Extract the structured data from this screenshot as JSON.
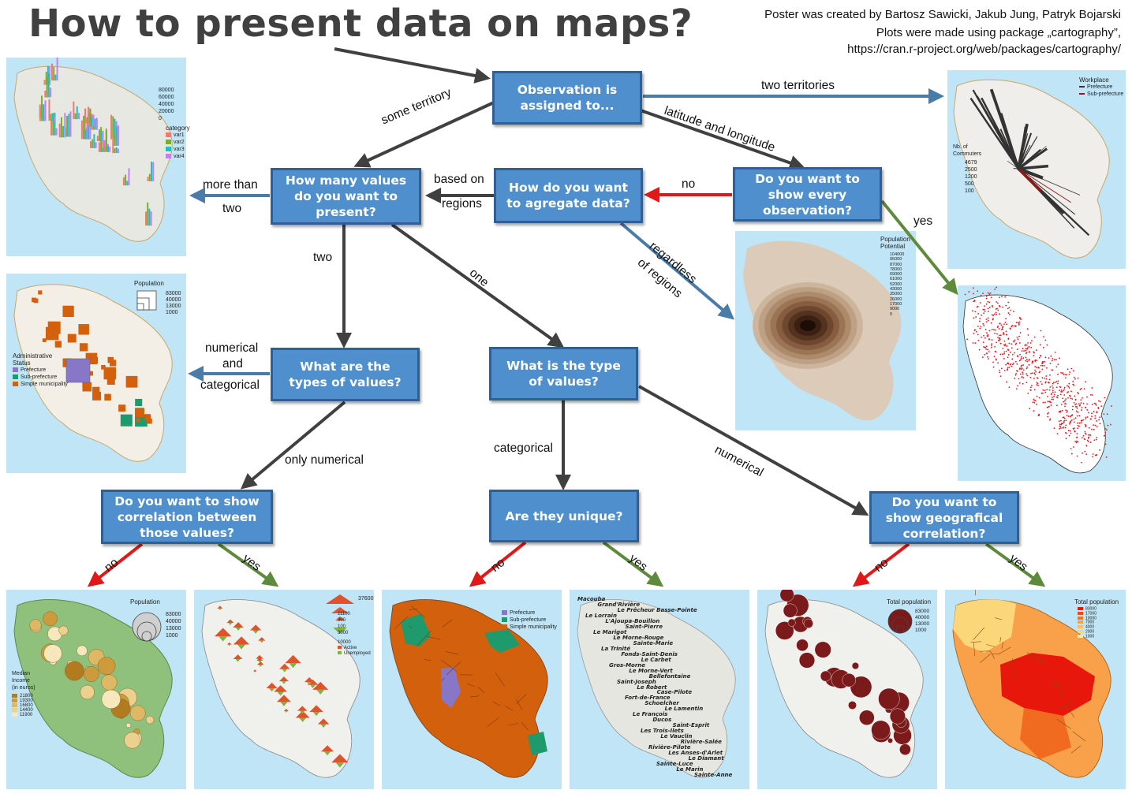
{
  "title": "How to present data on maps?",
  "credits": [
    "Poster was created by Bartosz Sawicki, Jakub Jung, Patryk Bojarski",
    "Plots were made using package „cartography”,",
    "https://cran.r-project.org/web/packages/cartography/"
  ],
  "colors": {
    "box_fill": "#4f8fcd",
    "box_border": "#2f5f93",
    "arrow_dark": "#404040",
    "arrow_blue": "#4a7ca9",
    "arrow_red": "#e01818",
    "arrow_green": "#5e8a3c",
    "map_bg": "#bfe5f6",
    "land": "#e8e8e2"
  },
  "questions": {
    "q_assigned": "Observation is\nassigned to...",
    "q_how_many": "How many values\ndo you want to\npresent?",
    "q_aggregate": "How do you want\nto agregate data?",
    "q_every": "Do you want to\nshow every\nobservation?",
    "q_types": "What are the\ntypes of values?",
    "q_type": "What is the type\nof values?",
    "q_corr": "Do you want to show\ncorrelation between\nthose values?",
    "q_unique": "Are they unique?",
    "q_geo": "Do you want to\nshow geografical\ncorrelation?"
  },
  "edges": {
    "two_territories": "two territories",
    "some_territory": "some territory",
    "lat_long": "latitude and longitude",
    "more_than_two_a": "more than",
    "more_than_two_b": "two",
    "based_on": "based on",
    "regions": "regions",
    "no_every": "no",
    "yes_every": "yes",
    "regardless_a": "regardless",
    "regardless_b": "of regions",
    "two": "two",
    "one": "one",
    "numerical_and_a": "numerical",
    "numerical_and_b": "and",
    "numerical_and_c": "categorical",
    "only_numerical": "only numerical",
    "categorical": "categorical",
    "numerical": "numerical",
    "no_corr": "no",
    "yes_corr": "yes",
    "no_unique": "no",
    "yes_unique": "yes",
    "no_geo": "no",
    "yes_geo": "yes"
  },
  "legends": {
    "bars": {
      "ticks": [
        "80000",
        "60000",
        "40000",
        "20000",
        "0"
      ],
      "title": "category",
      "items": [
        "var1",
        "var2",
        "var3",
        "var4"
      ]
    },
    "squares": {
      "title": "Population",
      "values": [
        "83000",
        "40000",
        "13000",
        "1000"
      ],
      "status_title_a": "Administrative",
      "status_title_b": "Status",
      "items": [
        "Prefecture",
        "Sub-prefecture",
        "Simple municipality"
      ]
    },
    "flows": {
      "title": "Workplace",
      "items": [
        "Prefecture",
        "Sub-prefecture"
      ],
      "commuters_a": "Nb. of",
      "commuters_b": "Commuters",
      "values": [
        "4679",
        "2500",
        "1200",
        "500",
        "100"
      ]
    },
    "smooth": {
      "title_a": "Population",
      "title_b": "Potential",
      "values": [
        "104000",
        "95000",
        "87000",
        "78000",
        "69000",
        "61000",
        "52000",
        "43000",
        "35000",
        "26000",
        "17000",
        "9000",
        "0"
      ]
    },
    "circles_income": {
      "title": "Population",
      "values": [
        "83000",
        "40000",
        "13000",
        "1000"
      ],
      "income_a": "Median",
      "income_b": "Income",
      "income_c": "(in euros)",
      "income_values": [
        "21800",
        "19300",
        "16800",
        "14400",
        "11900"
      ]
    },
    "triangles": {
      "top_values": [
        "37600",
        "11100",
        "300",
        "100",
        "3000"
      ],
      "bottom_value": "10000",
      "items": [
        "Active",
        "Unemployed"
      ]
    },
    "typo": {
      "items": [
        "Prefecture",
        "Sub-prefecture",
        "Simple municipality"
      ]
    },
    "circles_total": {
      "title": "Total population",
      "values": [
        "83000",
        "40000",
        "13000",
        "1000"
      ]
    },
    "choro": {
      "title": "Total population",
      "values": [
        "83000",
        "17000",
        "10000",
        "7000",
        "4000",
        "2000",
        "1000"
      ]
    }
  },
  "places": [
    "Macouba",
    "Grand'Rivière",
    "Le Prêcheur Basse-Pointe",
    "Le Lorrain",
    "L'Ajoupa-Bouillon",
    "Saint-Pierre",
    "Le Marigot",
    "Le Morne-Rouge",
    "Sainte-Marie",
    "La Trinité",
    "Fonds-Saint-Denis",
    "Le Carbet",
    "Gros-Morne",
    "Le Morne-Vert",
    "Bellefontaine",
    "Saint-Joseph",
    "Le Robert",
    "Case-Pilote",
    "Fort-de-France",
    "Schoelcher",
    "Le Lamentin",
    "Le François",
    "Ducos",
    "Saint-Esprit",
    "Les Trois-Ilets",
    "Le Vauclin",
    "Rivière-Salée",
    "Rivière-Pilote",
    "Les Anses-d'Arlet",
    "Le Diamant",
    "Sainte-Luce",
    "Le Marin",
    "Sainte-Anne"
  ]
}
